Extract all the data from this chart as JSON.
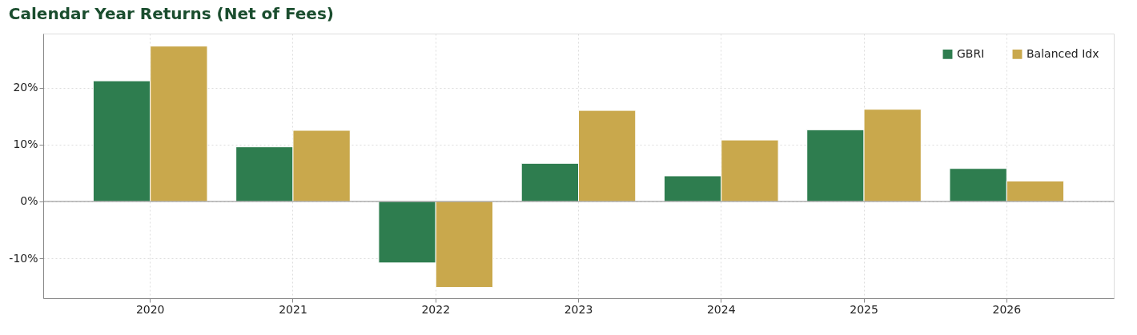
{
  "chart_data": {
    "type": "bar",
    "title": "Calendar Year Returns (Net of Fees)",
    "categories": [
      "2020",
      "2021",
      "2022",
      "2023",
      "2024",
      "2025",
      "2026"
    ],
    "series": [
      {
        "name": "GBRI",
        "color": "#2e7d4f",
        "values": [
          21.2,
          9.6,
          -10.8,
          6.7,
          4.5,
          12.6,
          5.8
        ]
      },
      {
        "name": "Balanced Idx",
        "color": "#c9a84c",
        "values": [
          27.3,
          12.5,
          -15.1,
          16.0,
          10.8,
          16.2,
          3.6
        ]
      }
    ],
    "ylim": [
      -17,
      29.5
    ],
    "yticks": [
      {
        "value": -10,
        "label": "-10%"
      },
      {
        "value": 0,
        "label": "0%"
      },
      {
        "value": 10,
        "label": "10%"
      },
      {
        "value": 20,
        "label": "20%"
      }
    ],
    "ref_lines": [
      {
        "axis": "y",
        "value": 0,
        "color": "#888888"
      }
    ],
    "grid": true,
    "legend": "top right"
  }
}
